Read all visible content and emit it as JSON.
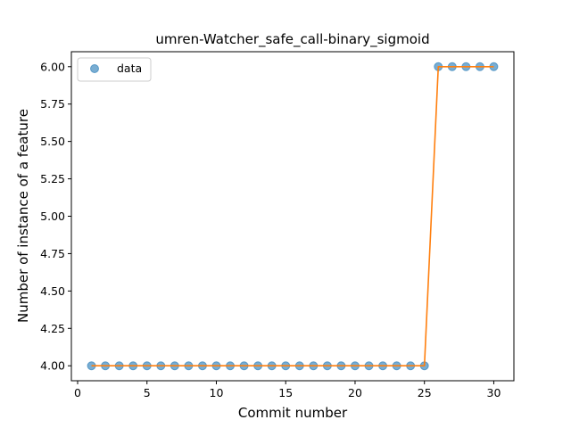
{
  "chart_data": {
    "type": "scatter",
    "title": "umren-Watcher_safe_call-binary_sigmoid",
    "xlabel": "Commit number",
    "ylabel": "Number of instance of a feature",
    "xlim": [
      -0.45,
      31.45
    ],
    "ylim": [
      3.9,
      6.1
    ],
    "xticks": [
      0,
      5,
      10,
      15,
      20,
      25,
      30
    ],
    "xtick_labels": [
      "0",
      "5",
      "10",
      "15",
      "20",
      "25",
      "30"
    ],
    "yticks": [
      4.0,
      4.25,
      4.5,
      4.75,
      5.0,
      5.25,
      5.5,
      5.75,
      6.0
    ],
    "ytick_labels": [
      "4.00",
      "4.25",
      "4.50",
      "4.75",
      "5.00",
      "5.25",
      "5.50",
      "5.75",
      "6.00"
    ],
    "grid": false,
    "legend_position": "top-left",
    "series": [
      {
        "name": "data",
        "kind": "scatter",
        "color": "#1f77b4",
        "x": [
          1,
          2,
          3,
          4,
          5,
          6,
          7,
          8,
          9,
          10,
          11,
          12,
          13,
          14,
          15,
          16,
          17,
          18,
          19,
          20,
          21,
          22,
          23,
          24,
          25,
          26,
          27,
          28,
          29,
          30
        ],
        "y": [
          4,
          4,
          4,
          4,
          4,
          4,
          4,
          4,
          4,
          4,
          4,
          4,
          4,
          4,
          4,
          4,
          4,
          4,
          4,
          4,
          4,
          4,
          4,
          4,
          4,
          6,
          6,
          6,
          6,
          6
        ]
      },
      {
        "kind": "line",
        "color": "#ff7f0e",
        "x": [
          1,
          2,
          3,
          4,
          5,
          6,
          7,
          8,
          9,
          10,
          11,
          12,
          13,
          14,
          15,
          16,
          17,
          18,
          19,
          20,
          21,
          22,
          23,
          24,
          25,
          26,
          27,
          28,
          29,
          30
        ],
        "y": [
          4,
          4,
          4,
          4,
          4,
          4,
          4,
          4,
          4,
          4,
          4,
          4,
          4,
          4,
          4,
          4,
          4,
          4,
          4,
          4,
          4,
          4,
          4,
          4,
          4,
          6,
          6,
          6,
          6,
          6
        ]
      }
    ]
  }
}
